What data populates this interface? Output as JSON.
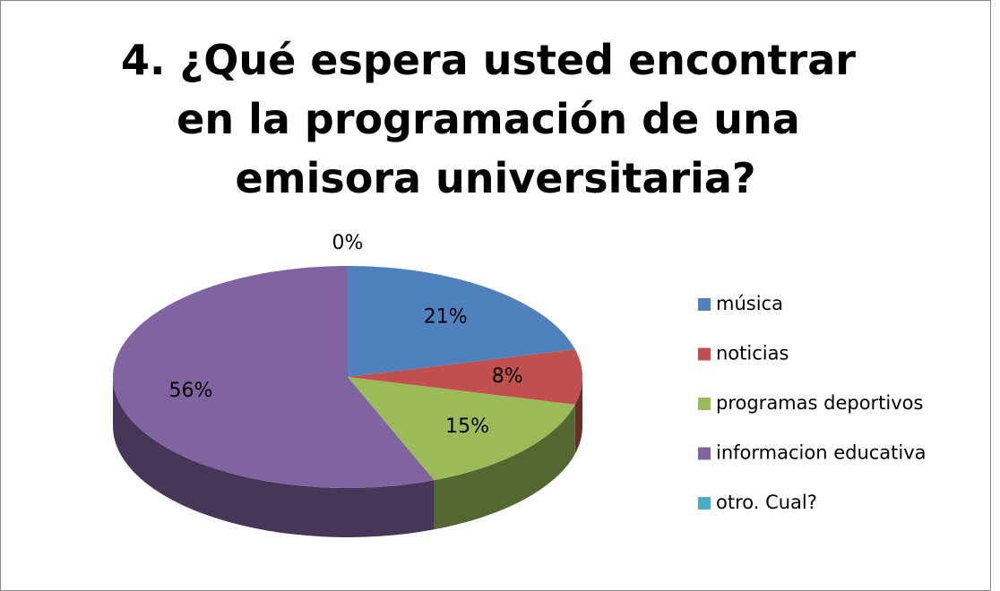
{
  "chart_data": {
    "type": "pie3d",
    "title": "4. ¿Qué espera usted encontrar en la programación de una emisora universitaria?",
    "categories": [
      "música",
      "noticias",
      "programas deportivos",
      "informacion educativa",
      "otro. Cual?"
    ],
    "values": [
      21,
      8,
      15,
      56,
      0
    ],
    "value_labels": [
      "21%",
      "8%",
      "15%",
      "56%",
      "0%"
    ],
    "colors": [
      "#4f81bd",
      "#c0504d",
      "#9bbb59",
      "#8064a2",
      "#4bacc6"
    ],
    "legend": "right"
  }
}
